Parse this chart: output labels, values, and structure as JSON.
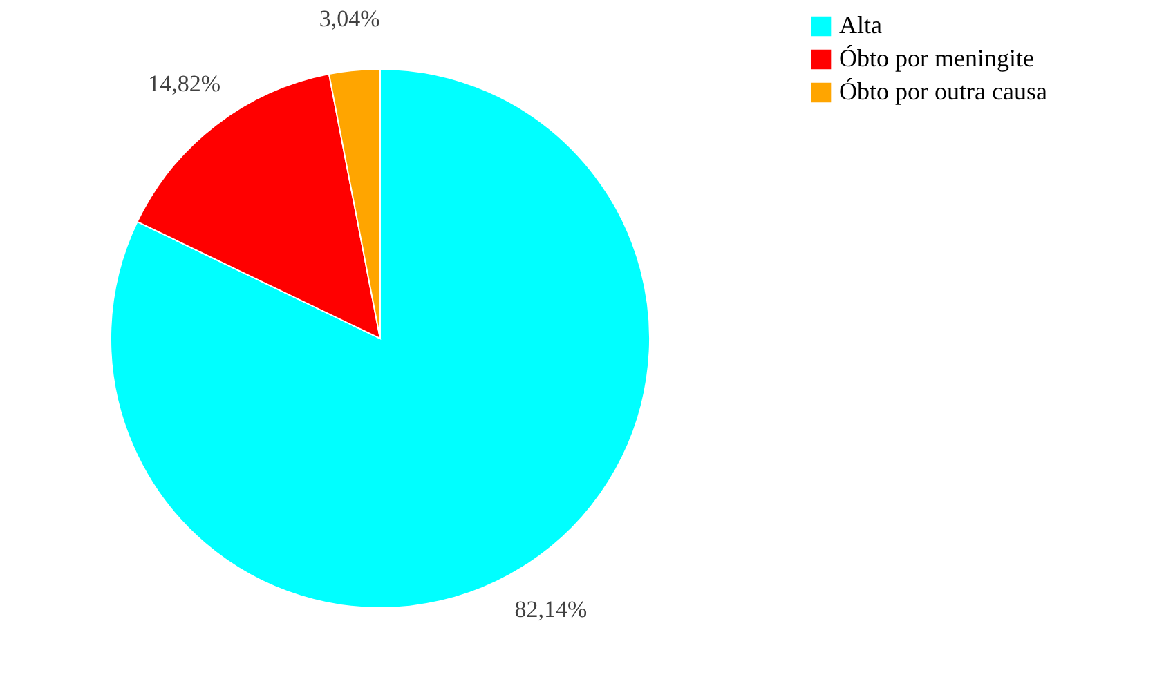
{
  "chart_data": {
    "type": "pie",
    "categories": [
      "Alta",
      "Óbto por meningite",
      "Óbto por outra causa"
    ],
    "values": [
      82.14,
      14.82,
      3.04
    ],
    "colors": [
      "#00ffff",
      "#ff0000",
      "#ffa500"
    ],
    "value_labels": [
      "82,14%",
      "14,82%",
      "3,04%"
    ],
    "legend": "right"
  }
}
